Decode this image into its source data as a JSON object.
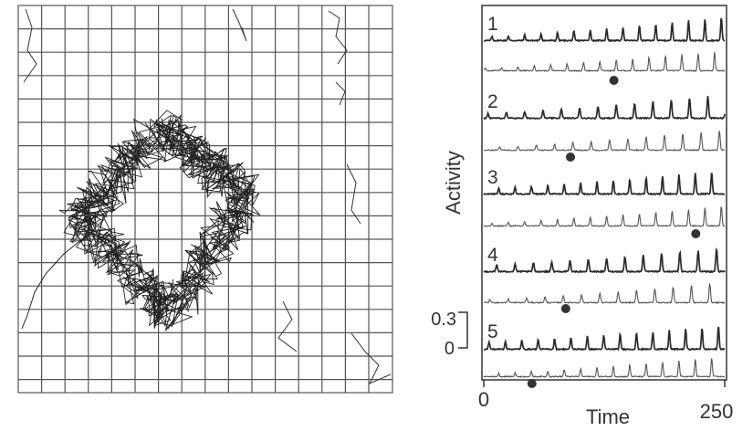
{
  "figure": {
    "right_panel": {
      "y_axis_label": "Activity",
      "x_axis_label": "Time",
      "x_ticks": [
        "0",
        "250"
      ],
      "scale_bar": {
        "top_label": "0.3",
        "bottom_label": "0"
      },
      "row_labels": [
        "1",
        "2",
        "3",
        "4",
        "5"
      ]
    }
  },
  "chart_data": [
    {
      "type": "line",
      "title": "",
      "xlabel": "Time",
      "ylabel": "Activity",
      "xlim": [
        0,
        250
      ],
      "scale_bar": [
        0,
        0.3
      ],
      "rows": [
        {
          "label": "1",
          "dot_time": 135,
          "traces": [
            "upper",
            "lower"
          ]
        },
        {
          "label": "2",
          "dot_time": 90,
          "traces": [
            "upper",
            "lower"
          ]
        },
        {
          "label": "3",
          "dot_time": 220,
          "traces": [
            "upper",
            "lower"
          ]
        },
        {
          "label": "4",
          "dot_time": 85,
          "traces": [
            "upper",
            "lower"
          ]
        },
        {
          "label": "5",
          "dot_time": 50,
          "traces": [
            "upper",
            "lower"
          ]
        }
      ]
    }
  ]
}
